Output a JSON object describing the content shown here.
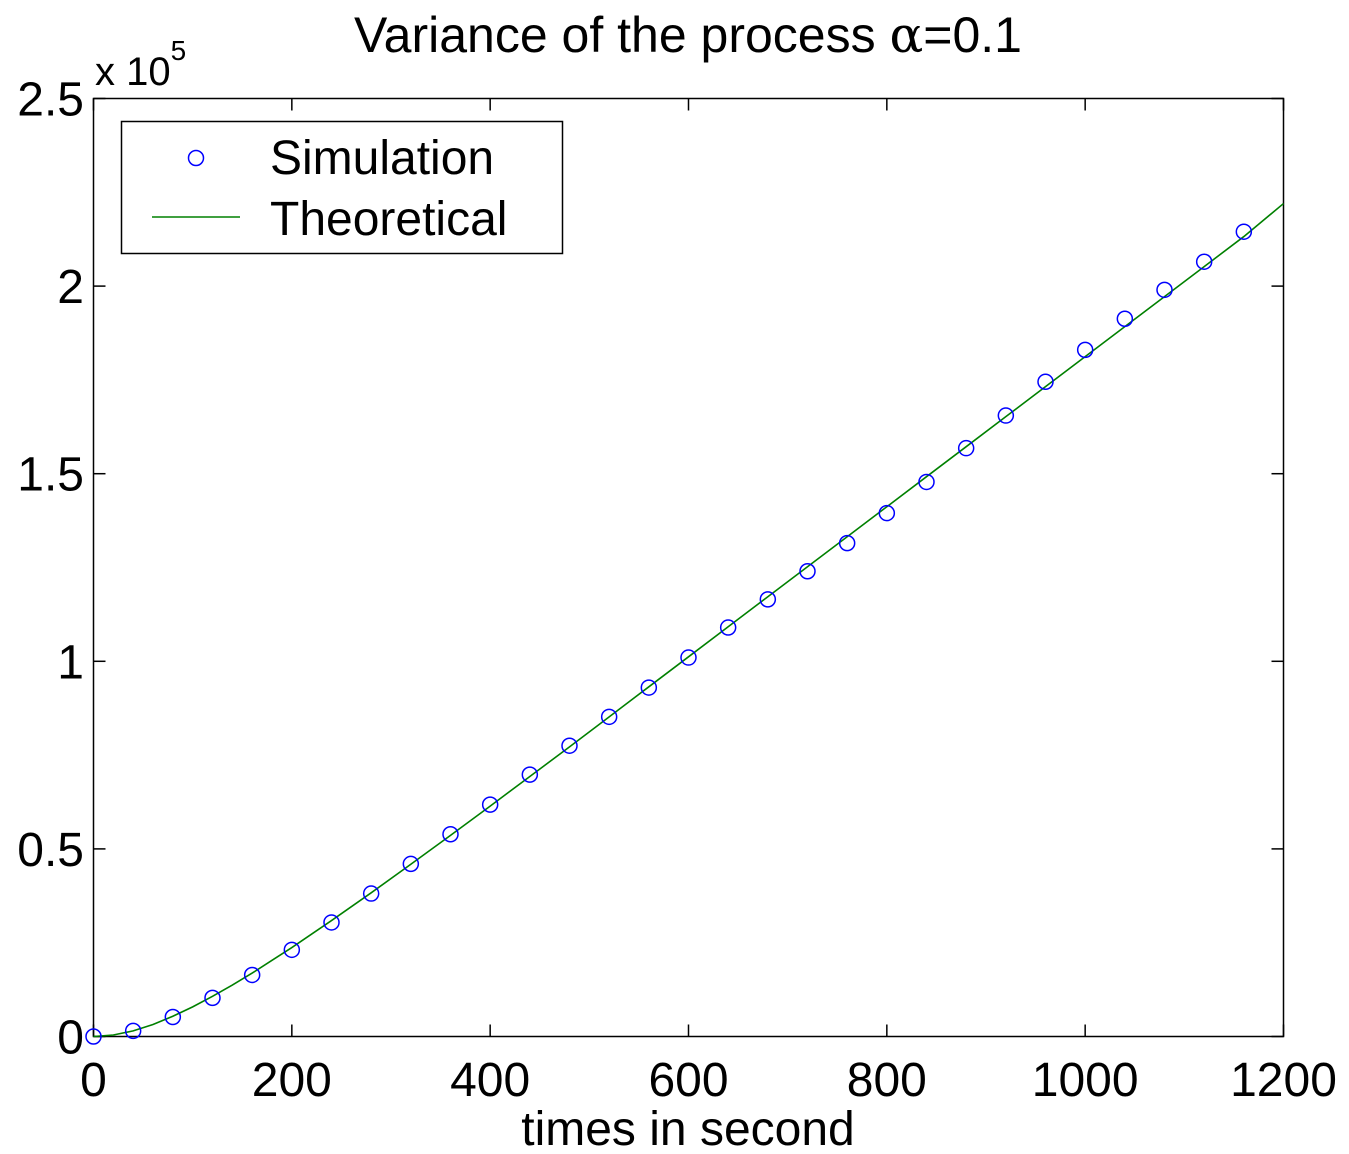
{
  "chart_data": {
    "type": "line",
    "title_text": "Variance of the process ",
    "title_symbol": "α",
    "title_suffix": "=0.1",
    "xlabel": "times in second",
    "ylabel": "",
    "y_multiplier_prefix": "x 10",
    "y_multiplier_exponent": "5",
    "xlim": [
      0,
      1200
    ],
    "ylim": [
      0,
      2.5
    ],
    "xticks": [
      0,
      200,
      400,
      600,
      800,
      1000,
      1200
    ],
    "xtick_labels": [
      "0",
      "200",
      "400",
      "600",
      "800",
      "1000",
      "1200"
    ],
    "yticks": [
      0,
      0.5,
      1,
      1.5,
      2,
      2.5
    ],
    "ytick_labels": [
      "0",
      "0.5",
      "1",
      "1.5",
      "2",
      "2.5"
    ],
    "grid": false,
    "legend_position": "top-left",
    "series": [
      {
        "name": "Simulation",
        "marker": "circle",
        "color": "#0000ff",
        "x": [
          0,
          40,
          80,
          120,
          160,
          200,
          240,
          280,
          320,
          360,
          400,
          440,
          480,
          520,
          560,
          600,
          640,
          680,
          720,
          760,
          800,
          840,
          880,
          920,
          960,
          1000,
          1040,
          1080,
          1120,
          1160
        ],
        "y": [
          0.0,
          0.015,
          0.052,
          0.103,
          0.164,
          0.231,
          0.304,
          0.381,
          0.46,
          0.539,
          0.618,
          0.698,
          0.775,
          0.852,
          0.93,
          1.01,
          1.09,
          1.165,
          1.24,
          1.315,
          1.395,
          1.478,
          1.568,
          1.655,
          1.745,
          1.83,
          1.913,
          1.99,
          2.065,
          2.145
        ]
      },
      {
        "name": "Theoretical",
        "marker": "none",
        "color": "#008000",
        "x": [
          0,
          20,
          40,
          60,
          80,
          100,
          120,
          140,
          160,
          180,
          200,
          240,
          280,
          320,
          360,
          400,
          440,
          480,
          520,
          560,
          600,
          640,
          680,
          720,
          760,
          800,
          840,
          880,
          920,
          960,
          1000,
          1040,
          1080,
          1120,
          1160,
          1200
        ],
        "y": [
          0.0,
          0.004,
          0.015,
          0.032,
          0.054,
          0.079,
          0.107,
          0.137,
          0.169,
          0.203,
          0.237,
          0.309,
          0.383,
          0.459,
          0.536,
          0.614,
          0.693,
          0.772,
          0.852,
          0.932,
          1.012,
          1.092,
          1.172,
          1.252,
          1.332,
          1.412,
          1.492,
          1.572,
          1.652,
          1.732,
          1.812,
          1.892,
          1.972,
          2.052,
          2.132,
          2.22
        ]
      }
    ]
  }
}
